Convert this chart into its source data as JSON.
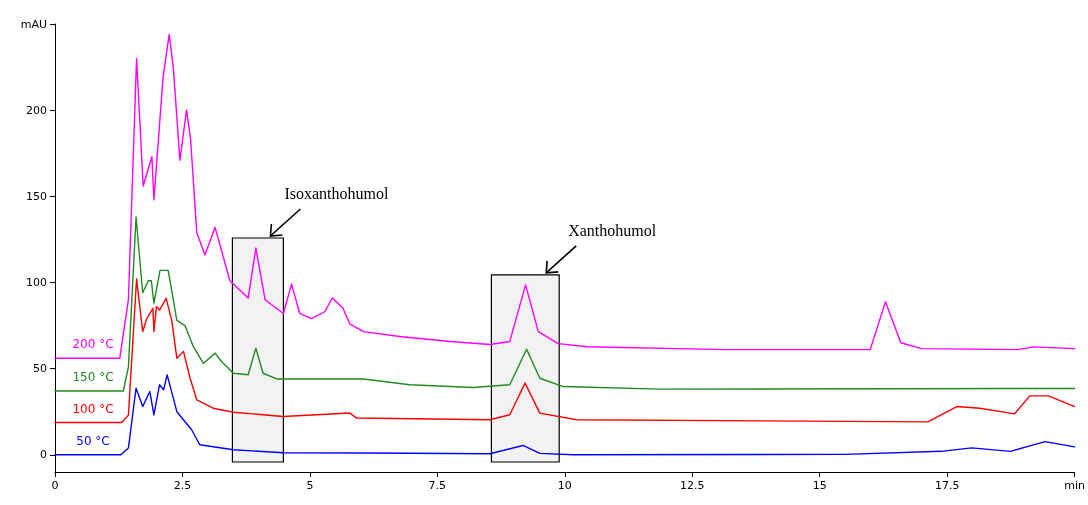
{
  "chart_data": {
    "type": "line",
    "xlim": [
      0,
      20
    ],
    "xticks": [
      0,
      2.5,
      5,
      7.5,
      10,
      12.5,
      15,
      17.5,
      {
        "value": 20,
        "label": "min"
      }
    ],
    "ylim": [
      -10,
      250
    ],
    "yticks": [
      0,
      50,
      100,
      150,
      200,
      {
        "value": 250,
        "label": "mAU"
      }
    ],
    "grid": false,
    "legend": false,
    "marker": "none",
    "line_style": "solid",
    "bands": [
      {
        "axis": "x",
        "from": 3.48,
        "to": 4.48,
        "label": "Isoxanthohumol"
      },
      {
        "axis": "x",
        "from": 8.56,
        "to": 9.89,
        "label": "Xanthohumol"
      }
    ],
    "series": [
      {
        "name": "200 °C",
        "color": "#ff00ff",
        "x": [
          0,
          1.27,
          1.44,
          1.6,
          1.73,
          1.9,
          1.94,
          2.12,
          2.24,
          2.32,
          2.45,
          2.58,
          2.66,
          2.78,
          2.94,
          3.14,
          3.43,
          3.79,
          3.94,
          4.12,
          4.48,
          4.64,
          4.8,
          5.03,
          5.29,
          5.44,
          5.65,
          5.78,
          6.05,
          6.76,
          7.75,
          8.53,
          8.92,
          9.23,
          9.48,
          9.87,
          10.44,
          13.16,
          15.99,
          16.29,
          16.59,
          17.0,
          18.89,
          19.19,
          20
        ],
        "values": [
          56,
          56,
          90,
          230,
          156,
          173,
          148,
          219,
          244,
          225,
          171,
          200,
          183,
          129,
          116,
          132,
          101,
          91,
          120,
          90,
          82,
          99,
          82,
          79,
          83,
          91,
          85,
          76,
          71.5,
          68.6,
          65.7,
          64,
          65.7,
          98.6,
          71.5,
          64.5,
          62.7,
          61,
          61,
          88.8,
          65,
          61.6,
          61,
          62.6,
          61.6
        ]
      },
      {
        "name": "150 °C",
        "color": "#1f8a1f",
        "x": [
          0,
          1.34,
          1.44,
          1.59,
          1.72,
          1.83,
          1.89,
          1.94,
          2.06,
          2.22,
          2.39,
          2.55,
          2.71,
          2.91,
          3.14,
          3.27,
          3.5,
          3.79,
          3.94,
          4.08,
          4.35,
          6.05,
          6.96,
          8.2,
          8.92,
          9.25,
          9.51,
          9.97,
          11.84,
          20
        ],
        "values": [
          37,
          37,
          51,
          138,
          94,
          101,
          101,
          88,
          107,
          107,
          78,
          75,
          63,
          53,
          59,
          54,
          47.3,
          46.4,
          61.8,
          47.3,
          44,
          44,
          40.6,
          39,
          40.6,
          61.2,
          44.4,
          39.6,
          38.1,
          38.5
        ]
      },
      {
        "name": "100 °C",
        "color": "#ff0000",
        "x": [
          0,
          1.31,
          1.44,
          1.6,
          1.72,
          1.8,
          1.92,
          1.94,
          1.99,
          2.05,
          2.18,
          2.29,
          2.39,
          2.52,
          2.65,
          2.78,
          3.1,
          3.5,
          4.48,
          5.78,
          5.92,
          8.53,
          8.92,
          9.22,
          9.51,
          10.23,
          17.12,
          17.69,
          18.14,
          18.82,
          19.12,
          19.49,
          20
        ],
        "values": [
          18.7,
          18.7,
          23,
          102,
          71.5,
          79,
          85,
          71.5,
          86,
          84,
          90.8,
          78,
          56,
          60,
          44.4,
          31.9,
          27,
          24.7,
          22.2,
          24.2,
          21.3,
          20.3,
          23.2,
          41.6,
          24.2,
          20.3,
          19.1,
          28,
          27,
          23.7,
          34.2,
          34.2,
          28
        ]
      },
      {
        "name": "50 °C",
        "color": "#0000ff",
        "x": [
          0,
          1.29,
          1.44,
          1.59,
          1.72,
          1.86,
          1.94,
          2.05,
          2.13,
          2.2,
          2.39,
          2.68,
          2.84,
          3.5,
          4.48,
          6.11,
          8.53,
          9.18,
          9.51,
          10.16,
          15.5,
          17.38,
          17.98,
          18.74,
          19.42,
          20
        ],
        "values": [
          0,
          0,
          3.9,
          38.6,
          28,
          36.7,
          23.2,
          40.6,
          37.7,
          46.4,
          25,
          14.5,
          5.8,
          2.9,
          1.2,
          1,
          0.6,
          5.4,
          0.8,
          0,
          0.2,
          2,
          4,
          2,
          7.6,
          4.6
        ]
      }
    ]
  }
}
